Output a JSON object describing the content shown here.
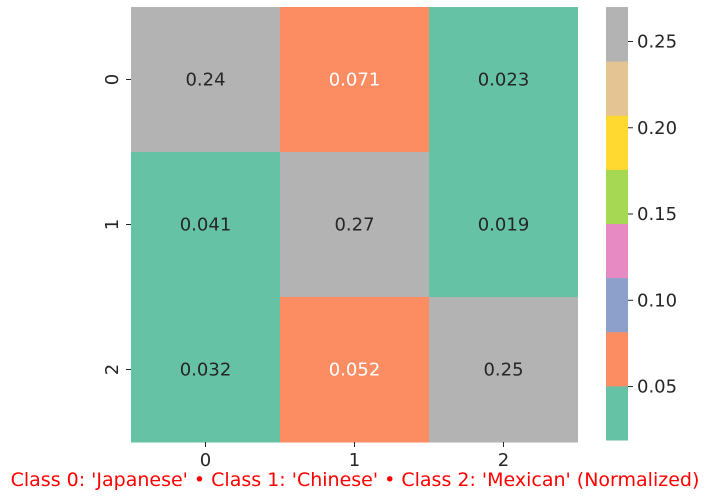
{
  "chart_data": {
    "type": "heatmap",
    "title": "",
    "xlabel": "",
    "ylabel": "",
    "caption": "Class 0: 'Japanese' • Class 1: 'Chinese' • Class 2: 'Mexican' (Normalized)",
    "caption_color": "#ff0000",
    "x_categories": [
      "0",
      "1",
      "2"
    ],
    "y_categories": [
      "0",
      "1",
      "2"
    ],
    "values": [
      [
        0.24,
        0.071,
        0.023
      ],
      [
        0.041,
        0.27,
        0.019
      ],
      [
        0.032,
        0.052,
        0.25
      ]
    ],
    "cell_labels": [
      [
        "0.24",
        "0.071",
        "0.023"
      ],
      [
        "0.041",
        "0.27",
        "0.019"
      ],
      [
        "0.032",
        "0.052",
        "0.25"
      ]
    ],
    "colormap": "Set2",
    "colormap_colors": [
      "#66c2a5",
      "#fc8d62",
      "#8da0cb",
      "#e78ac3",
      "#a6d854",
      "#ffd92f",
      "#e5c494",
      "#b3b3b3"
    ],
    "vmin": 0.019,
    "vmax": 0.27,
    "colorbar_ticks": [
      0.05,
      0.1,
      0.15,
      0.2,
      0.25
    ],
    "colorbar_tick_labels": [
      "0.05",
      "0.10",
      "0.15",
      "0.20",
      "0.25"
    ],
    "annotation_text_colors": {
      "dark": "#262626",
      "light": "#ffffff"
    }
  }
}
